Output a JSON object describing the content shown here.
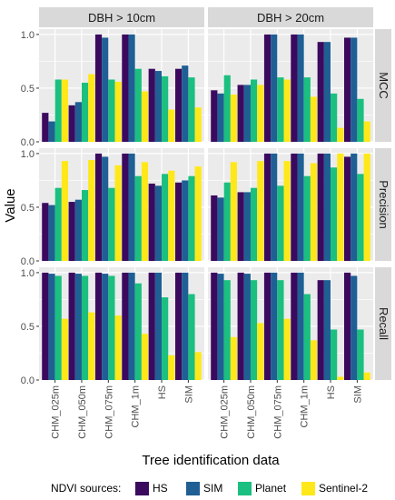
{
  "chart_data": {
    "type": "bar",
    "xlabel": "Tree identification data",
    "ylabel": "Value",
    "ylim": [
      0,
      1.05
    ],
    "yticks": [
      "0.0",
      "0.5",
      "1.0"
    ],
    "categories": [
      "CHM_025m",
      "CHM_050m",
      "CHM_075m",
      "CHM_1m",
      "HS",
      "SIM"
    ],
    "columns": [
      "DBH > 10cm",
      "DBH > 20cm"
    ],
    "rows": [
      "MCC",
      "Precision",
      "Recall"
    ],
    "legend": {
      "title": "NDVI sources:",
      "position": "bottom",
      "entries": [
        "HS",
        "SIM",
        "Planet",
        "Sentinel-2"
      ]
    },
    "colors": {
      "HS": "#3b0a5e",
      "SIM": "#1f5f94",
      "Planet": "#1bbf7f",
      "Sentinel-2": "#ffe81a",
      "panel_bg": "#ebebeb",
      "strip_bg": "#d9d9d9",
      "grid": "#ffffff"
    },
    "panels": [
      {
        "row": "MCC",
        "col": "DBH > 10cm",
        "series": [
          {
            "name": "HS",
            "values": [
              0.27,
              0.34,
              1.0,
              1.0,
              0.68,
              0.68
            ]
          },
          {
            "name": "SIM",
            "values": [
              0.19,
              0.37,
              0.97,
              1.0,
              0.66,
              0.71
            ]
          },
          {
            "name": "Planet",
            "values": [
              0.58,
              0.55,
              0.58,
              0.68,
              0.61,
              0.6
            ]
          },
          {
            "name": "Sentinel-2",
            "values": [
              0.58,
              0.63,
              0.56,
              0.47,
              0.3,
              0.32
            ]
          }
        ]
      },
      {
        "row": "MCC",
        "col": "DBH > 20cm",
        "series": [
          {
            "name": "HS",
            "values": [
              0.48,
              0.53,
              1.0,
              1.0,
              0.93,
              0.97
            ]
          },
          {
            "name": "SIM",
            "values": [
              0.45,
              0.53,
              1.0,
              1.0,
              0.93,
              0.97
            ]
          },
          {
            "name": "Planet",
            "values": [
              0.62,
              0.58,
              0.6,
              0.6,
              0.45,
              0.4
            ]
          },
          {
            "name": "Sentinel-2",
            "values": [
              0.44,
              0.53,
              0.58,
              0.42,
              0.13,
              0.19
            ]
          }
        ]
      },
      {
        "row": "Precision",
        "col": "DBH > 10cm",
        "series": [
          {
            "name": "HS",
            "values": [
              0.54,
              0.55,
              1.0,
              1.0,
              0.72,
              0.73
            ]
          },
          {
            "name": "SIM",
            "values": [
              0.52,
              0.57,
              0.97,
              1.0,
              0.7,
              0.75
            ]
          },
          {
            "name": "Planet",
            "values": [
              0.68,
              0.66,
              0.68,
              0.79,
              0.81,
              0.79
            ]
          },
          {
            "name": "Sentinel-2",
            "values": [
              0.93,
              0.94,
              0.89,
              0.92,
              0.84,
              0.88
            ]
          }
        ]
      },
      {
        "row": "Precision",
        "col": "DBH > 20cm",
        "series": [
          {
            "name": "HS",
            "values": [
              0.61,
              0.64,
              1.0,
              1.0,
              1.0,
              0.97
            ]
          },
          {
            "name": "SIM",
            "values": [
              0.59,
              0.64,
              1.0,
              1.0,
              1.0,
              1.0
            ]
          },
          {
            "name": "Planet",
            "values": [
              0.73,
              0.68,
              0.7,
              0.79,
              0.87,
              0.81
            ]
          },
          {
            "name": "Sentinel-2",
            "values": [
              0.92,
              0.93,
              0.93,
              0.91,
              1.0,
              1.0
            ]
          }
        ]
      },
      {
        "row": "Recall",
        "col": "DBH > 10cm",
        "series": [
          {
            "name": "HS",
            "values": [
              1.0,
              1.0,
              1.0,
              1.0,
              1.0,
              1.0
            ]
          },
          {
            "name": "SIM",
            "values": [
              0.99,
              0.99,
              0.99,
              1.0,
              1.0,
              1.0
            ]
          },
          {
            "name": "Planet",
            "values": [
              0.97,
              0.97,
              0.97,
              0.9,
              0.77,
              0.8
            ]
          },
          {
            "name": "Sentinel-2",
            "values": [
              0.57,
              0.63,
              0.6,
              0.43,
              0.23,
              0.26
            ]
          }
        ]
      },
      {
        "row": "Recall",
        "col": "DBH > 20cm",
        "series": [
          {
            "name": "HS",
            "values": [
              1.0,
              1.0,
              1.0,
              1.0,
              0.93,
              1.0
            ]
          },
          {
            "name": "SIM",
            "values": [
              0.99,
              0.99,
              1.0,
              1.0,
              0.93,
              0.97
            ]
          },
          {
            "name": "Planet",
            "values": [
              0.93,
              0.93,
              0.93,
              0.8,
              0.47,
              0.47
            ]
          },
          {
            "name": "Sentinel-2",
            "values": [
              0.4,
              0.53,
              0.57,
              0.37,
              0.03,
              0.07
            ]
          }
        ]
      }
    ]
  }
}
